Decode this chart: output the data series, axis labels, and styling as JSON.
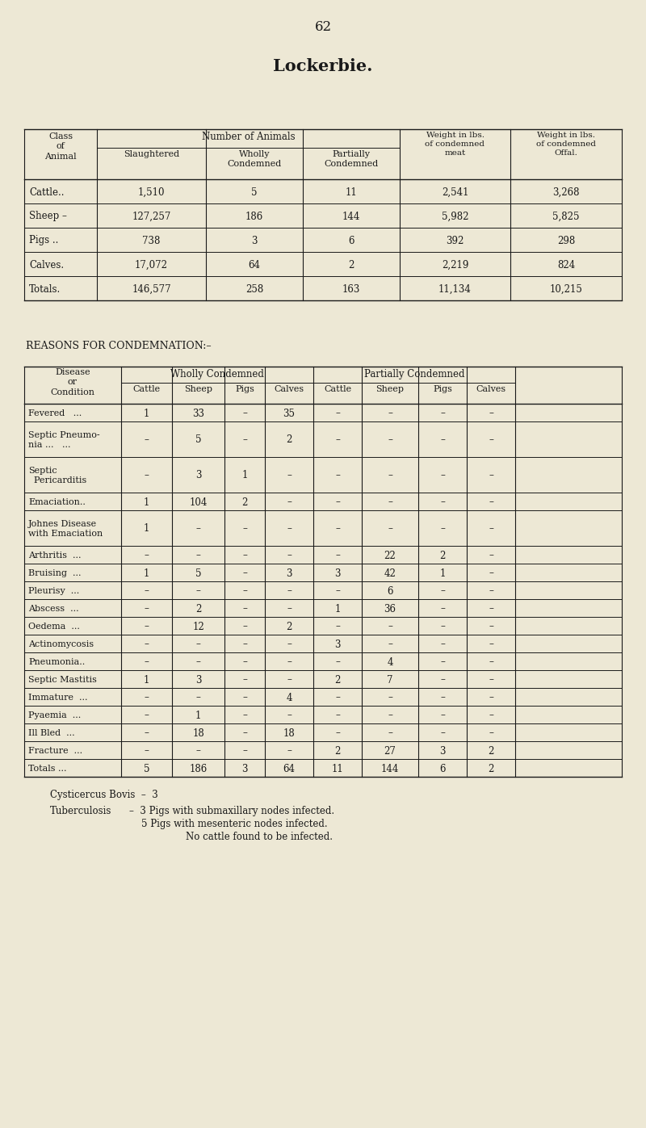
{
  "page_number": "62",
  "title": "Lockerbie.",
  "bg_color": "#ede8d5",
  "text_color": "#1a1a1a",
  "table1_rows": [
    [
      "Cattle..",
      "1,510",
      "5",
      "11",
      "2,541",
      "3,268"
    ],
    [
      "Sheep –",
      "127,257",
      "186",
      "144",
      "5,982",
      "5,825"
    ],
    [
      "Pigs ..",
      "738",
      "3",
      "6",
      "392",
      "298"
    ],
    [
      "Calves.",
      "17,072",
      "64",
      "2",
      "2,219",
      "824"
    ],
    [
      "Totals.",
      "146,577",
      "258",
      "163",
      "11,134",
      "10,215"
    ]
  ],
  "section2_title": "REASONS FOR CONDEMNATION:–",
  "table2_rows": [
    [
      "Fevered   ...",
      "1",
      "33",
      "–",
      "35",
      "–",
      "–",
      "–",
      "–"
    ],
    [
      "Septic Pneumo-\nnia ...   ...",
      "–",
      "5",
      "–",
      "2",
      "–",
      "–",
      "–",
      "–"
    ],
    [
      "Septic\n  Pericarditis",
      "–",
      "3",
      "1",
      "–",
      "–",
      "–",
      "–",
      "–"
    ],
    [
      "Emaciation..",
      "1",
      "104",
      "2",
      "–",
      "–",
      "–",
      "–",
      "–"
    ],
    [
      "Johnes Disease\nwith Emaciation",
      "1",
      "–",
      "–",
      "–",
      "–",
      "–",
      "–",
      "–"
    ],
    [
      "Arthritis  ...",
      "–",
      "–",
      "–",
      "–",
      "–",
      "22",
      "2",
      "–"
    ],
    [
      "Bruising  ...",
      "1",
      "5",
      "–",
      "3",
      "3",
      "42",
      "1",
      "–"
    ],
    [
      "Pleurisy  ...",
      "–",
      "–",
      "–",
      "–",
      "–",
      "6",
      "–",
      "–"
    ],
    [
      "Abscess  ...",
      "–",
      "2",
      "–",
      "–",
      "1",
      "36",
      "–",
      "–"
    ],
    [
      "Oedema  ...",
      "–",
      "12",
      "–",
      "2",
      "–",
      "–",
      "–",
      "–"
    ],
    [
      "Actinomycosis",
      "–",
      "–",
      "–",
      "–",
      "3",
      "–",
      "–",
      "–"
    ],
    [
      "Pneumonia..",
      "–",
      "–",
      "–",
      "–",
      "–",
      "4",
      "–",
      "–"
    ],
    [
      "Septic Mastitis",
      "1",
      "3",
      "–",
      "–",
      "2",
      "7",
      "–",
      "–"
    ],
    [
      "Immature  ...",
      "–",
      "–",
      "–",
      "4",
      "–",
      "–",
      "–",
      "–"
    ],
    [
      "Pyaemia  ...",
      "–",
      "1",
      "–",
      "–",
      "–",
      "–",
      "–",
      "–"
    ],
    [
      "Ill Bled  ...",
      "–",
      "18",
      "–",
      "18",
      "–",
      "–",
      "–",
      "–"
    ],
    [
      "Fracture  ...",
      "–",
      "–",
      "–",
      "–",
      "2",
      "27",
      "3",
      "2"
    ],
    [
      "Totals ...",
      "5",
      "186",
      "3",
      "64",
      "11",
      "144",
      "6",
      "2"
    ]
  ]
}
